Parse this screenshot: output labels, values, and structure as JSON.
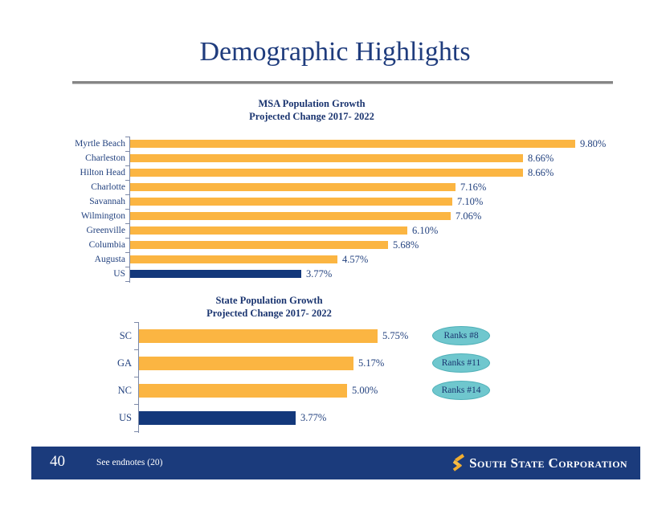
{
  "title": "Demographic Highlights",
  "colors": {
    "navy_text": "#1F3C7D",
    "bar_orange": "#FBB542",
    "bar_navy": "#13387B",
    "badge_teal": "#6FC7CE",
    "footer_navy": "#1B3B7C",
    "divider_gray": "#868686"
  },
  "chart_data": [
    {
      "type": "bar",
      "orientation": "horizontal",
      "title": "MSA Population Growth",
      "subtitle": "Projected Change 2017- 2022",
      "unit": "%",
      "categories": [
        "Myrtle Beach",
        "Charleston",
        "Hilton Head",
        "Charlotte",
        "Savannah",
        "Wilmington",
        "Greenville",
        "Columbia",
        "Augusta",
        "US"
      ],
      "values": [
        9.8,
        8.66,
        8.66,
        7.16,
        7.1,
        7.06,
        6.1,
        5.68,
        4.57,
        3.77
      ],
      "value_labels": [
        "9.80%",
        "8.66%",
        "8.66%",
        "7.16%",
        "7.10%",
        "7.06%",
        "6.10%",
        "5.68%",
        "4.57%",
        "3.77%"
      ],
      "highlight_category": "US",
      "xlim": [
        0,
        10.5
      ],
      "grid": false,
      "legend": "none"
    },
    {
      "type": "bar",
      "orientation": "horizontal",
      "title": "State Population Growth",
      "subtitle": "Projected Change 2017- 2022",
      "unit": "%",
      "categories": [
        "SC",
        "GA",
        "NC",
        "US"
      ],
      "values": [
        5.75,
        5.17,
        5.0,
        3.77
      ],
      "value_labels": [
        "5.75%",
        "5.17%",
        "5.00%",
        "3.77%"
      ],
      "badges": [
        "Ranks #8",
        "Ranks #11",
        "Ranks #14",
        ""
      ],
      "highlight_category": "US",
      "xlim": [
        0,
        6.5
      ],
      "grid": false,
      "legend": "none"
    }
  ],
  "footer": {
    "page_number": "40",
    "note": "See endnotes (20)",
    "company": "South State Corporation"
  }
}
